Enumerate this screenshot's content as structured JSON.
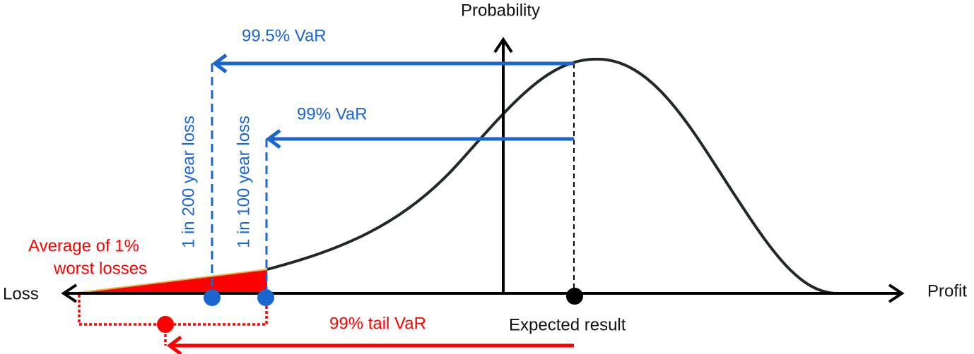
{
  "axes": {
    "y_label": "Probability",
    "x_left_label": "Loss",
    "x_right_label": "Profit"
  },
  "annotations": {
    "var_995": "99.5% VaR",
    "var_99": "99% VaR",
    "loss_200": "1 in 200 year loss",
    "loss_100": "1 in 100 year loss",
    "average_worst": [
      "Average of 1%",
      "worst losses"
    ],
    "tail_var": "99% tail VaR",
    "expected": "Expected result"
  }
}
